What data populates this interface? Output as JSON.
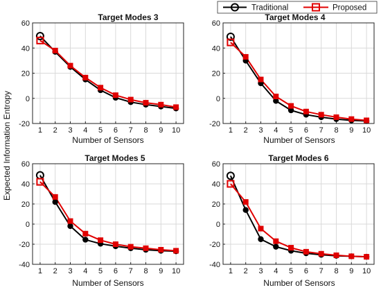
{
  "figure": {
    "ylabel": "Expected Information Entropy"
  },
  "legend": {
    "entries": [
      {
        "label": "Traditional",
        "color": "#000000",
        "marker": "circle"
      },
      {
        "label": "Proposed",
        "color": "#e00000",
        "marker": "square"
      }
    ],
    "placement": "top-right"
  },
  "chart_data": [
    {
      "type": "line",
      "title": "Target Modes 3",
      "xlabel": "Number of Sensors",
      "ylabel": "",
      "x": [
        1,
        2,
        3,
        4,
        5,
        6,
        7,
        8,
        9,
        10
      ],
      "xticks": [
        "1",
        "2",
        "3",
        "4",
        "5",
        "6",
        "7",
        "8",
        "9",
        "10"
      ],
      "ylim": [
        -20,
        60
      ],
      "yticks": [
        -20,
        0,
        20,
        40,
        60
      ],
      "grid": true,
      "series": [
        {
          "name": "Traditional",
          "color": "#000000",
          "marker": "circle",
          "values": [
            49.5,
            37,
            25,
            15,
            6.5,
            0.5,
            -3,
            -5,
            -6.5,
            -8
          ]
        },
        {
          "name": "Proposed",
          "color": "#e00000",
          "marker": "square",
          "values": [
            46,
            38,
            26,
            16.5,
            8.5,
            2.5,
            -1,
            -3.5,
            -5,
            -7
          ]
        }
      ]
    },
    {
      "type": "line",
      "title": "Target Modes 4",
      "xlabel": "Number of Sensors",
      "ylabel": "",
      "x": [
        1,
        2,
        3,
        4,
        5,
        6,
        7,
        8,
        9,
        10
      ],
      "xticks": [
        "1",
        "2",
        "3",
        "4",
        "5",
        "6",
        "7",
        "8",
        "9",
        "10"
      ],
      "ylim": [
        -20,
        60
      ],
      "yticks": [
        -20,
        0,
        20,
        40,
        60
      ],
      "grid": true,
      "series": [
        {
          "name": "Traditional",
          "color": "#000000",
          "marker": "circle",
          "values": [
            49,
            30,
            12,
            -2,
            -9.5,
            -13,
            -15,
            -16.5,
            -17.5,
            -18
          ]
        },
        {
          "name": "Proposed",
          "color": "#e00000",
          "marker": "square",
          "values": [
            44.5,
            33,
            15,
            1.5,
            -6,
            -10.5,
            -13,
            -15,
            -16.5,
            -17.5
          ]
        }
      ]
    },
    {
      "type": "line",
      "title": "Target Modes 5",
      "xlabel": "Number of Sensors",
      "ylabel": "",
      "x": [
        1,
        2,
        3,
        4,
        5,
        6,
        7,
        8,
        9,
        10
      ],
      "xticks": [
        "1",
        "2",
        "3",
        "4",
        "5",
        "6",
        "7",
        "8",
        "9",
        "10"
      ],
      "ylim": [
        -40,
        60
      ],
      "yticks": [
        -40,
        -20,
        0,
        20,
        40,
        60
      ],
      "grid": true,
      "series": [
        {
          "name": "Traditional",
          "color": "#000000",
          "marker": "circle",
          "values": [
            48.5,
            22,
            -2,
            -15.5,
            -19.5,
            -22,
            -24,
            -25.5,
            -26.5,
            -27
          ]
        },
        {
          "name": "Proposed",
          "color": "#e00000",
          "marker": "square",
          "values": [
            42,
            27,
            3,
            -9.5,
            -16,
            -20,
            -22.5,
            -24,
            -25.5,
            -26.5
          ]
        }
      ]
    },
    {
      "type": "line",
      "title": "Target Modes 6",
      "xlabel": "Number of Sensors",
      "ylabel": "",
      "x": [
        1,
        2,
        3,
        4,
        5,
        6,
        7,
        8,
        9,
        10
      ],
      "xticks": [
        "1",
        "2",
        "3",
        "4",
        "5",
        "6",
        "7",
        "8",
        "9",
        "10"
      ],
      "ylim": [
        -40,
        60
      ],
      "yticks": [
        -40,
        -20,
        0,
        20,
        40,
        60
      ],
      "grid": true,
      "series": [
        {
          "name": "Traditional",
          "color": "#000000",
          "marker": "circle",
          "values": [
            48,
            14,
            -15,
            -22.5,
            -26.5,
            -29,
            -30.5,
            -31.5,
            -32,
            -32.5
          ]
        },
        {
          "name": "Proposed",
          "color": "#e00000",
          "marker": "square",
          "values": [
            40,
            22,
            -4.5,
            -17,
            -23.5,
            -27.5,
            -29.5,
            -31,
            -32,
            -32.5
          ]
        }
      ]
    }
  ]
}
